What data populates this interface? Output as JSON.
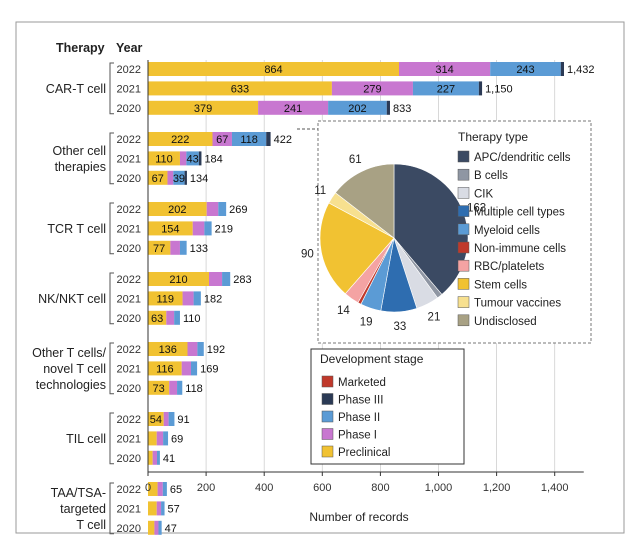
{
  "chart_data": {
    "type": "bar",
    "orientation": "horizontal",
    "stacked": true,
    "headers": {
      "therapy": "Therapy",
      "year": "Year"
    },
    "xlabel": "Number of records",
    "xlim": [
      0,
      1500
    ],
    "xticks": [
      0,
      200,
      400,
      600,
      800,
      1000,
      1200,
      1400
    ],
    "xtick_labels": [
      "0",
      "200",
      "400",
      "600",
      "800",
      "1,000",
      "1,200",
      "1,400"
    ],
    "stage_colors": {
      "Preclinical": "#f1c232",
      "Phase I": "#c877d0",
      "Phase II": "#5b9bd5",
      "Phase III": "#2b3a55",
      "Marketed": "#c0392b"
    },
    "groups": [
      {
        "label_lines": [
          "CAR-T cell"
        ],
        "rows": [
          {
            "year": "2022",
            "total": 1432,
            "total_label": "1,432",
            "segments": [
              {
                "stage": "Preclinical",
                "value": 864,
                "label": "864"
              },
              {
                "stage": "Phase I",
                "value": 314,
                "label": "314"
              },
              {
                "stage": "Phase II",
                "value": 243,
                "label": "243"
              },
              {
                "stage": "Phase III",
                "value": 11,
                "label": ""
              }
            ]
          },
          {
            "year": "2021",
            "total": 1150,
            "total_label": "1,150",
            "segments": [
              {
                "stage": "Preclinical",
                "value": 633,
                "label": "633"
              },
              {
                "stage": "Phase I",
                "value": 279,
                "label": "279"
              },
              {
                "stage": "Phase II",
                "value": 227,
                "label": "227"
              },
              {
                "stage": "Phase III",
                "value": 11,
                "label": ""
              }
            ]
          },
          {
            "year": "2020",
            "total": 833,
            "total_label": "833",
            "segments": [
              {
                "stage": "Preclinical",
                "value": 379,
                "label": "379"
              },
              {
                "stage": "Phase I",
                "value": 241,
                "label": "241"
              },
              {
                "stage": "Phase II",
                "value": 202,
                "label": "202"
              },
              {
                "stage": "Phase III",
                "value": 11,
                "label": ""
              }
            ]
          }
        ]
      },
      {
        "label_lines": [
          "Other cell",
          "therapies"
        ],
        "rows": [
          {
            "year": "2022",
            "total": 422,
            "total_label": "422",
            "segments": [
              {
                "stage": "Preclinical",
                "value": 222,
                "label": "222"
              },
              {
                "stage": "Phase I",
                "value": 67,
                "label": "67"
              },
              {
                "stage": "Phase II",
                "value": 118,
                "label": "118"
              },
              {
                "stage": "Phase III",
                "value": 15,
                "label": ""
              }
            ]
          },
          {
            "year": "2021",
            "total": 184,
            "total_label": "184",
            "segments": [
              {
                "stage": "Preclinical",
                "value": 110,
                "label": "110"
              },
              {
                "stage": "Phase I",
                "value": 22,
                "label": ""
              },
              {
                "stage": "Phase II",
                "value": 43,
                "label": "43"
              },
              {
                "stage": "Phase III",
                "value": 9,
                "label": ""
              }
            ]
          },
          {
            "year": "2020",
            "total": 134,
            "total_label": "134",
            "segments": [
              {
                "stage": "Preclinical",
                "value": 67,
                "label": "67"
              },
              {
                "stage": "Phase I",
                "value": 20,
                "label": ""
              },
              {
                "stage": "Phase II",
                "value": 39,
                "label": "39"
              },
              {
                "stage": "Phase III",
                "value": 8,
                "label": ""
              }
            ]
          }
        ]
      },
      {
        "label_lines": [
          "TCR T cell"
        ],
        "rows": [
          {
            "year": "2022",
            "total": 269,
            "total_label": "269",
            "segments": [
              {
                "stage": "Preclinical",
                "value": 202,
                "label": "202"
              },
              {
                "stage": "Phase I",
                "value": 40,
                "label": ""
              },
              {
                "stage": "Phase II",
                "value": 27,
                "label": ""
              }
            ]
          },
          {
            "year": "2021",
            "total": 219,
            "total_label": "219",
            "segments": [
              {
                "stage": "Preclinical",
                "value": 154,
                "label": "154"
              },
              {
                "stage": "Phase I",
                "value": 40,
                "label": ""
              },
              {
                "stage": "Phase II",
                "value": 25,
                "label": ""
              }
            ]
          },
          {
            "year": "2020",
            "total": 133,
            "total_label": "133",
            "segments": [
              {
                "stage": "Preclinical",
                "value": 77,
                "label": "77"
              },
              {
                "stage": "Phase I",
                "value": 33,
                "label": ""
              },
              {
                "stage": "Phase II",
                "value": 23,
                "label": ""
              }
            ]
          }
        ]
      },
      {
        "label_lines": [
          "NK/NKT cell"
        ],
        "rows": [
          {
            "year": "2022",
            "total": 283,
            "total_label": "283",
            "segments": [
              {
                "stage": "Preclinical",
                "value": 210,
                "label": "210"
              },
              {
                "stage": "Phase I",
                "value": 45,
                "label": ""
              },
              {
                "stage": "Phase II",
                "value": 28,
                "label": ""
              }
            ]
          },
          {
            "year": "2021",
            "total": 182,
            "total_label": "182",
            "segments": [
              {
                "stage": "Preclinical",
                "value": 119,
                "label": "119"
              },
              {
                "stage": "Phase I",
                "value": 38,
                "label": ""
              },
              {
                "stage": "Phase II",
                "value": 25,
                "label": ""
              }
            ]
          },
          {
            "year": "2020",
            "total": 110,
            "total_label": "110",
            "segments": [
              {
                "stage": "Preclinical",
                "value": 63,
                "label": "63"
              },
              {
                "stage": "Phase I",
                "value": 27,
                "label": ""
              },
              {
                "stage": "Phase II",
                "value": 20,
                "label": ""
              }
            ]
          }
        ]
      },
      {
        "label_lines": [
          "Other T cells/",
          "novel T cell",
          "technologies"
        ],
        "rows": [
          {
            "year": "2022",
            "total": 192,
            "total_label": "192",
            "segments": [
              {
                "stage": "Preclinical",
                "value": 136,
                "label": "136"
              },
              {
                "stage": "Phase I",
                "value": 34,
                "label": ""
              },
              {
                "stage": "Phase II",
                "value": 22,
                "label": ""
              }
            ]
          },
          {
            "year": "2021",
            "total": 169,
            "total_label": "169",
            "segments": [
              {
                "stage": "Preclinical",
                "value": 116,
                "label": "116"
              },
              {
                "stage": "Phase I",
                "value": 32,
                "label": ""
              },
              {
                "stage": "Phase II",
                "value": 21,
                "label": ""
              }
            ]
          },
          {
            "year": "2020",
            "total": 118,
            "total_label": "118",
            "segments": [
              {
                "stage": "Preclinical",
                "value": 73,
                "label": "73"
              },
              {
                "stage": "Phase I",
                "value": 27,
                "label": ""
              },
              {
                "stage": "Phase II",
                "value": 18,
                "label": ""
              }
            ]
          }
        ]
      },
      {
        "label_lines": [
          "TIL cell"
        ],
        "rows": [
          {
            "year": "2022",
            "total": 91,
            "total_label": "91",
            "segments": [
              {
                "stage": "Preclinical",
                "value": 54,
                "label": "54"
              },
              {
                "stage": "Phase I",
                "value": 17,
                "label": ""
              },
              {
                "stage": "Phase II",
                "value": 20,
                "label": ""
              }
            ]
          },
          {
            "year": "2021",
            "total": 69,
            "total_label": "69",
            "segments": [
              {
                "stage": "Preclinical",
                "value": 30,
                "label": ""
              },
              {
                "stage": "Phase I",
                "value": 22,
                "label": ""
              },
              {
                "stage": "Phase II",
                "value": 17,
                "label": ""
              }
            ]
          },
          {
            "year": "2020",
            "total": 41,
            "total_label": "41",
            "segments": [
              {
                "stage": "Preclinical",
                "value": 16,
                "label": ""
              },
              {
                "stage": "Phase I",
                "value": 15,
                "label": ""
              },
              {
                "stage": "Phase II",
                "value": 10,
                "label": ""
              }
            ]
          }
        ]
      },
      {
        "label_lines": [
          "TAA/TSA-",
          "targeted",
          "T cell"
        ],
        "rows": [
          {
            "year": "2022",
            "total": 65,
            "total_label": "65",
            "segments": [
              {
                "stage": "Preclinical",
                "value": 33,
                "label": ""
              },
              {
                "stage": "Phase I",
                "value": 18,
                "label": ""
              },
              {
                "stage": "Phase II",
                "value": 14,
                "label": ""
              }
            ]
          },
          {
            "year": "2021",
            "total": 57,
            "total_label": "57",
            "segments": [
              {
                "stage": "Preclinical",
                "value": 30,
                "label": ""
              },
              {
                "stage": "Phase I",
                "value": 15,
                "label": ""
              },
              {
                "stage": "Phase II",
                "value": 12,
                "label": ""
              }
            ]
          },
          {
            "year": "2020",
            "total": 47,
            "total_label": "47",
            "segments": [
              {
                "stage": "Preclinical",
                "value": 22,
                "label": ""
              },
              {
                "stage": "Phase I",
                "value": 14,
                "label": ""
              },
              {
                "stage": "Phase II",
                "value": 11,
                "label": ""
              }
            ]
          }
        ]
      }
    ],
    "stage_legend": {
      "title": "Development stage",
      "items": [
        "Marketed",
        "Phase III",
        "Phase II",
        "Phase I",
        "Preclinical"
      ]
    },
    "inset_pie": {
      "type": "pie",
      "legend_title": "Therapy type",
      "slices": [
        {
          "label": "APC/dendritic cells",
          "value": 163,
          "value_label": "163",
          "color": "#3b4a63"
        },
        {
          "label": "B cells",
          "value": 5,
          "value_label": "",
          "color": "#8f96a3"
        },
        {
          "label": "CIK",
          "value": 21,
          "value_label": "21",
          "color": "#d9dce4"
        },
        {
          "label": "Multiple cell types",
          "value": 33,
          "value_label": "33",
          "color": "#2e6db0"
        },
        {
          "label": "Myeloid cells",
          "value": 19,
          "value_label": "19",
          "color": "#5b9bd5"
        },
        {
          "label": "Non-immune cells",
          "value": 3,
          "value_label": "",
          "color": "#c0392b"
        },
        {
          "label": "RBC/platelets",
          "value": 14,
          "value_label": "14",
          "color": "#f4a3a3"
        },
        {
          "label": "Stem cells",
          "value": 90,
          "value_label": "90",
          "color": "#f1c232"
        },
        {
          "label": "Tumour vaccines",
          "value": 11,
          "value_label": "11",
          "color": "#f7e08f"
        },
        {
          "label": "Undisclosed",
          "value": 61,
          "value_label": "61",
          "color": "#a8a184"
        }
      ]
    }
  }
}
